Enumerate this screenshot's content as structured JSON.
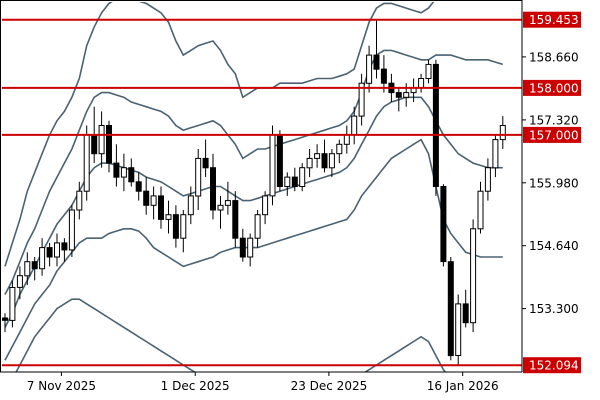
{
  "chart_data": {
    "type": "candlestick",
    "title": "",
    "xlabel": "",
    "ylabel": "",
    "ylim": [
      151.95,
      159.83
    ],
    "grid": false,
    "legend": "none",
    "x_tick_labels": [
      "7 Nov 2025",
      "1 Dec 2025",
      "23 Dec 2025",
      "16 Jan 2026"
    ],
    "x_tick_index": [
      8,
      26,
      44,
      62
    ],
    "y_ticks": [
      {
        "value": 158.66,
        "label": "158.660"
      },
      {
        "value": 157.32,
        "label": "157.320"
      },
      {
        "value": 155.98,
        "label": "155.980"
      },
      {
        "value": 154.64,
        "label": "154.640"
      },
      {
        "value": 153.3,
        "label": "153.300"
      }
    ],
    "horizontal_lines": [
      {
        "value": 159.453,
        "label": "159.453"
      },
      {
        "value": 158.0,
        "label": "158.000"
      },
      {
        "value": 157.0,
        "label": "157.000"
      },
      {
        "value": 152.094,
        "label": "152.094"
      }
    ],
    "colors": {
      "background": "#ffffff",
      "candle": "#000000",
      "band_line": "#4a6272",
      "level_line": "#cc0000",
      "level_label_bg": "#cc0000",
      "level_label_text": "#ffffff",
      "axis": "#000000"
    },
    "candles": [
      [
        153.1,
        153.2,
        152.8,
        153.05
      ],
      [
        153.05,
        153.9,
        152.9,
        153.75
      ],
      [
        153.75,
        154.2,
        153.5,
        154.0
      ],
      [
        154.0,
        154.5,
        153.8,
        154.3
      ],
      [
        154.3,
        154.4,
        153.9,
        154.15
      ],
      [
        154.15,
        154.8,
        154.0,
        154.6
      ],
      [
        154.6,
        154.7,
        154.2,
        154.4
      ],
      [
        154.4,
        154.9,
        154.2,
        154.7
      ],
      [
        154.7,
        154.8,
        154.3,
        154.55
      ],
      [
        154.55,
        155.5,
        154.4,
        155.4
      ],
      [
        155.4,
        156.0,
        155.2,
        155.8
      ],
      [
        155.8,
        157.2,
        155.6,
        157.0
      ],
      [
        157.0,
        157.6,
        156.4,
        156.6
      ],
      [
        156.6,
        157.5,
        156.3,
        157.2
      ],
      [
        157.2,
        157.3,
        156.2,
        156.4
      ],
      [
        156.4,
        156.8,
        155.9,
        156.1
      ],
      [
        156.1,
        156.6,
        155.8,
        156.3
      ],
      [
        156.3,
        156.5,
        155.9,
        156.0
      ],
      [
        156.0,
        156.2,
        155.6,
        155.8
      ],
      [
        155.8,
        156.1,
        155.3,
        155.5
      ],
      [
        155.5,
        155.9,
        155.2,
        155.7
      ],
      [
        155.7,
        155.9,
        155.0,
        155.2
      ],
      [
        155.2,
        155.6,
        154.9,
        155.3
      ],
      [
        155.3,
        155.5,
        154.6,
        154.8
      ],
      [
        154.8,
        155.4,
        154.5,
        155.3
      ],
      [
        155.3,
        155.9,
        155.1,
        155.7
      ],
      [
        155.7,
        156.7,
        155.4,
        156.5
      ],
      [
        156.5,
        156.9,
        156.1,
        156.3
      ],
      [
        156.3,
        156.6,
        155.2,
        155.4
      ],
      [
        155.4,
        155.7,
        155.0,
        155.5
      ],
      [
        155.5,
        156.0,
        155.3,
        155.6
      ],
      [
        155.6,
        155.8,
        154.6,
        154.8
      ],
      [
        154.8,
        155.0,
        154.3,
        154.4
      ],
      [
        154.4,
        154.9,
        154.2,
        154.8
      ],
      [
        154.8,
        155.4,
        154.6,
        155.3
      ],
      [
        155.3,
        155.8,
        155.1,
        155.7
      ],
      [
        155.7,
        157.2,
        155.5,
        157.0
      ],
      [
        157.0,
        157.1,
        155.8,
        155.9
      ],
      [
        155.9,
        156.2,
        155.7,
        156.1
      ],
      [
        156.1,
        156.3,
        155.8,
        155.9
      ],
      [
        155.9,
        156.4,
        155.8,
        156.3
      ],
      [
        156.3,
        156.7,
        156.1,
        156.5
      ],
      [
        156.5,
        156.8,
        156.3,
        156.6
      ],
      [
        156.6,
        156.9,
        156.2,
        156.3
      ],
      [
        156.3,
        156.7,
        156.1,
        156.6
      ],
      [
        156.6,
        156.9,
        156.4,
        156.8
      ],
      [
        156.8,
        157.2,
        156.6,
        157.0
      ],
      [
        157.0,
        157.6,
        156.8,
        157.4
      ],
      [
        157.4,
        158.3,
        157.2,
        158.1
      ],
      [
        158.1,
        158.9,
        157.9,
        158.7
      ],
      [
        158.7,
        159.45,
        158.2,
        158.4
      ],
      [
        158.4,
        158.7,
        157.9,
        158.1
      ],
      [
        158.1,
        158.3,
        157.7,
        157.9
      ],
      [
        157.9,
        158.0,
        157.5,
        157.8
      ],
      [
        157.8,
        158.1,
        157.6,
        157.9
      ],
      [
        157.9,
        158.2,
        157.7,
        158.0
      ],
      [
        158.0,
        158.3,
        157.9,
        158.2
      ],
      [
        158.2,
        158.6,
        158.1,
        158.5
      ],
      [
        158.5,
        158.6,
        155.7,
        155.9
      ],
      [
        155.9,
        155.95,
        154.2,
        154.3
      ],
      [
        154.3,
        154.4,
        152.2,
        152.3
      ],
      [
        152.3,
        153.6,
        152.1,
        153.4
      ],
      [
        153.4,
        153.7,
        152.9,
        153.0
      ],
      [
        153.0,
        155.2,
        152.8,
        155.0
      ],
      [
        155.0,
        156.0,
        154.9,
        155.8
      ],
      [
        155.8,
        156.5,
        155.6,
        156.3
      ],
      [
        156.3,
        157.0,
        156.1,
        156.9
      ],
      [
        156.9,
        157.4,
        156.7,
        157.2
      ]
    ],
    "bollinger_bands": {
      "upper_3sd": [
        154.2,
        154.7,
        155.2,
        155.8,
        156.2,
        156.6,
        157.0,
        157.3,
        157.5,
        157.8,
        158.2,
        158.9,
        159.3,
        159.6,
        159.8,
        159.9,
        159.9,
        159.9,
        159.85,
        159.8,
        159.7,
        159.6,
        159.4,
        159.0,
        158.7,
        158.8,
        158.9,
        158.95,
        159.0,
        158.8,
        158.5,
        158.3,
        157.8,
        157.9,
        158.0,
        158.0,
        158.0,
        158.1,
        158.1,
        158.1,
        158.1,
        158.15,
        158.2,
        158.2,
        158.2,
        158.25,
        158.3,
        158.4,
        158.9,
        159.4,
        159.7,
        159.8,
        159.8,
        159.75,
        159.7,
        159.65,
        159.6,
        159.7,
        159.9,
        160.0,
        160.1,
        160.2,
        160.3,
        160.3,
        160.3,
        160.3,
        160.3,
        160.3
      ],
      "upper_2sd": [
        153.6,
        153.9,
        154.3,
        154.7,
        155.0,
        155.4,
        155.8,
        156.1,
        156.4,
        156.7,
        157.1,
        157.5,
        157.8,
        157.9,
        157.9,
        157.85,
        157.8,
        157.7,
        157.65,
        157.6,
        157.55,
        157.5,
        157.4,
        157.2,
        157.1,
        157.15,
        157.2,
        157.25,
        157.3,
        157.2,
        157.0,
        156.8,
        156.5,
        156.6,
        156.7,
        156.7,
        156.75,
        156.8,
        156.85,
        156.9,
        156.95,
        157.0,
        157.05,
        157.1,
        157.15,
        157.2,
        157.3,
        157.5,
        157.9,
        158.4,
        158.7,
        158.8,
        158.8,
        158.75,
        158.7,
        158.65,
        158.6,
        158.6,
        158.7,
        158.7,
        158.7,
        158.65,
        158.6,
        158.6,
        158.6,
        158.6,
        158.55,
        158.5
      ],
      "middle": [
        152.9,
        153.2,
        153.6,
        153.9,
        154.2,
        154.5,
        154.8,
        155.1,
        155.3,
        155.5,
        155.8,
        156.1,
        156.3,
        156.4,
        156.4,
        156.35,
        156.3,
        156.25,
        156.2,
        156.1,
        156.05,
        156.0,
        155.9,
        155.8,
        155.7,
        155.75,
        155.8,
        155.85,
        155.9,
        155.9,
        155.8,
        155.7,
        155.6,
        155.6,
        155.65,
        155.7,
        155.75,
        155.8,
        155.85,
        155.9,
        155.95,
        156.0,
        156.05,
        156.1,
        156.15,
        156.2,
        156.3,
        156.5,
        156.8,
        157.1,
        157.4,
        157.6,
        157.7,
        157.75,
        157.8,
        157.8,
        157.8,
        157.6,
        157.3,
        157.0,
        156.8,
        156.6,
        156.5,
        156.4,
        156.35,
        156.3,
        156.3,
        156.3
      ],
      "lower_2sd": [
        152.2,
        152.5,
        152.8,
        153.1,
        153.4,
        153.6,
        153.8,
        154.1,
        154.3,
        154.5,
        154.7,
        154.8,
        154.8,
        154.8,
        154.9,
        154.95,
        155.0,
        155.0,
        154.95,
        154.8,
        154.6,
        154.5,
        154.4,
        154.3,
        154.2,
        154.25,
        154.3,
        154.35,
        154.4,
        154.5,
        154.55,
        154.6,
        154.6,
        154.6,
        154.6,
        154.65,
        154.7,
        154.75,
        154.8,
        154.85,
        154.9,
        154.95,
        155.0,
        155.05,
        155.1,
        155.15,
        155.2,
        155.4,
        155.7,
        155.9,
        156.1,
        156.3,
        156.5,
        156.6,
        156.7,
        156.8,
        156.9,
        156.6,
        155.9,
        155.2,
        154.9,
        154.7,
        154.5,
        154.45,
        154.4,
        154.4,
        154.4,
        154.4
      ],
      "lower_3sd": [
        151.5,
        151.8,
        152.1,
        152.4,
        152.7,
        152.9,
        153.1,
        153.3,
        153.4,
        153.5,
        153.5,
        153.4,
        153.3,
        153.2,
        153.1,
        153.0,
        152.9,
        152.8,
        152.7,
        152.6,
        152.5,
        152.4,
        152.3,
        152.2,
        152.1,
        152.0,
        151.9,
        151.8,
        151.7,
        151.6,
        151.5,
        151.4,
        151.3,
        151.25,
        151.2,
        151.2,
        151.2,
        151.25,
        151.3,
        151.35,
        151.4,
        151.45,
        151.5,
        151.55,
        151.6,
        151.65,
        151.7,
        151.8,
        151.9,
        152.0,
        152.1,
        152.2,
        152.3,
        152.4,
        152.5,
        152.6,
        152.7,
        152.6,
        152.3,
        152.0,
        151.8,
        151.6,
        151.5,
        151.45,
        151.4,
        151.4,
        151.4,
        151.4
      ]
    }
  }
}
